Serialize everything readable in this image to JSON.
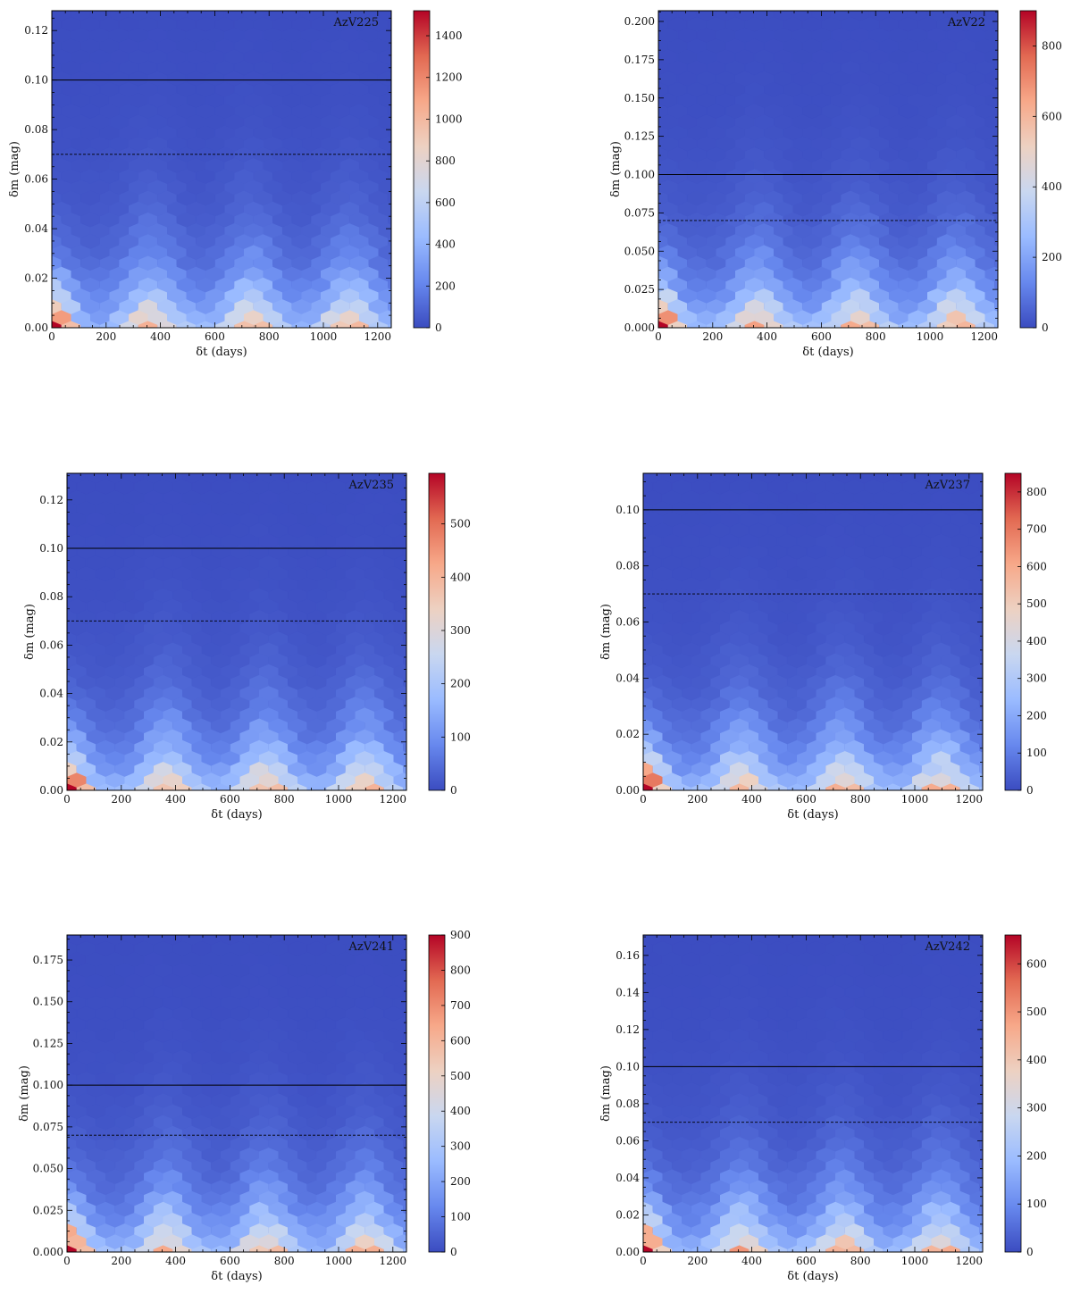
{
  "charts": {
    "common": {
      "xlabel": "δt (days)",
      "ylabel": "δm (mag)",
      "xticks": [
        0,
        200,
        400,
        600,
        800,
        1000,
        1200
      ],
      "xlim": [
        0,
        1250
      ],
      "colormap": "coolwarm",
      "colormap_stops": [
        "#3b4cc0",
        "#6788ee",
        "#9abbff",
        "#c9d7f0",
        "#edd1c2",
        "#f7a889",
        "#e26952",
        "#b40426"
      ],
      "solid_line_color": "#000000",
      "dashed_line_color": "#000000"
    },
    "panels": [
      {
        "name": "AzV225",
        "ylim": [
          0,
          0.128
        ],
        "yticks": [
          0.0,
          0.02,
          0.04,
          0.06,
          0.08,
          0.1,
          0.12
        ],
        "ydecimals": 2,
        "cbar_max": 1520,
        "cbar_ticks": [
          0,
          200,
          400,
          600,
          800,
          1000,
          1200,
          1400
        ],
        "solid": 0.1,
        "dashed": 0.07,
        "peak_scale": 1.0
      },
      {
        "name": "AzV22",
        "ylim": [
          0,
          0.207
        ],
        "yticks": [
          0.0,
          0.025,
          0.05,
          0.075,
          0.1,
          0.125,
          0.15,
          0.175,
          0.2
        ],
        "ydecimals": 3,
        "cbar_max": 900,
        "cbar_ticks": [
          0,
          200,
          400,
          600,
          800
        ],
        "solid": 0.1,
        "dashed": 0.07,
        "peak_scale": 1.0
      },
      {
        "name": "AzV235",
        "ylim": [
          0,
          0.131
        ],
        "yticks": [
          0.0,
          0.02,
          0.04,
          0.06,
          0.08,
          0.1,
          0.12
        ],
        "ydecimals": 2,
        "cbar_max": 595,
        "cbar_ticks": [
          0,
          100,
          200,
          300,
          400,
          500
        ],
        "solid": 0.1,
        "dashed": 0.07,
        "peak_scale": 1.0
      },
      {
        "name": "AzV237",
        "ylim": [
          0,
          0.113
        ],
        "yticks": [
          0.0,
          0.02,
          0.04,
          0.06,
          0.08,
          0.1
        ],
        "ydecimals": 2,
        "cbar_max": 850,
        "cbar_ticks": [
          0,
          100,
          200,
          300,
          400,
          500,
          600,
          700,
          800
        ],
        "solid": 0.1,
        "dashed": 0.07,
        "peak_scale": 1.0
      },
      {
        "name": "AzV241",
        "ylim": [
          0,
          0.19
        ],
        "yticks": [
          0.0,
          0.025,
          0.05,
          0.075,
          0.1,
          0.125,
          0.15,
          0.175
        ],
        "ydecimals": 3,
        "cbar_max": 900,
        "cbar_ticks": [
          0,
          100,
          200,
          300,
          400,
          500,
          600,
          700,
          800,
          900
        ],
        "solid": 0.1,
        "dashed": 0.07,
        "peak_scale": 1.0
      },
      {
        "name": "AzV242",
        "ylim": [
          0,
          0.171
        ],
        "yticks": [
          0.0,
          0.02,
          0.04,
          0.06,
          0.08,
          0.1,
          0.12,
          0.14,
          0.16
        ],
        "ydecimals": 2,
        "cbar_max": 660,
        "cbar_ticks": [
          0,
          100,
          200,
          300,
          400,
          500,
          600
        ],
        "solid": 0.1,
        "dashed": 0.07,
        "peak_scale": 1.0
      }
    ]
  },
  "chart_data": [
    {
      "type": "heatmap",
      "title": "AzV225",
      "xlabel": "δt (days)",
      "ylabel": "δm (mag)",
      "xlim": [
        0,
        1250
      ],
      "ylim": [
        0,
        0.128
      ],
      "colorbar_range": [
        0,
        1520
      ],
      "horizontal_lines": [
        {
          "y": 0.1,
          "style": "solid"
        },
        {
          "y": 0.07,
          "style": "dashed"
        }
      ]
    },
    {
      "type": "heatmap",
      "title": "AzV22",
      "xlabel": "δt (days)",
      "ylabel": "δm (mag)",
      "xlim": [
        0,
        1250
      ],
      "ylim": [
        0,
        0.207
      ],
      "colorbar_range": [
        0,
        900
      ],
      "horizontal_lines": [
        {
          "y": 0.1,
          "style": "solid"
        },
        {
          "y": 0.07,
          "style": "dashed"
        }
      ]
    },
    {
      "type": "heatmap",
      "title": "AzV235",
      "xlabel": "δt (days)",
      "ylabel": "δm (mag)",
      "xlim": [
        0,
        1250
      ],
      "ylim": [
        0,
        0.131
      ],
      "colorbar_range": [
        0,
        595
      ],
      "horizontal_lines": [
        {
          "y": 0.1,
          "style": "solid"
        },
        {
          "y": 0.07,
          "style": "dashed"
        }
      ]
    },
    {
      "type": "heatmap",
      "title": "AzV237",
      "xlabel": "δt (days)",
      "ylabel": "δm (mag)",
      "xlim": [
        0,
        1250
      ],
      "ylim": [
        0,
        0.113
      ],
      "colorbar_range": [
        0,
        850
      ],
      "horizontal_lines": [
        {
          "y": 0.1,
          "style": "solid"
        },
        {
          "y": 0.07,
          "style": "dashed"
        }
      ]
    },
    {
      "type": "heatmap",
      "title": "AzV241",
      "xlabel": "δt (days)",
      "ylabel": "δm (mag)",
      "xlim": [
        0,
        1250
      ],
      "ylim": [
        0,
        0.19
      ],
      "colorbar_range": [
        0,
        900
      ],
      "horizontal_lines": [
        {
          "y": 0.1,
          "style": "solid"
        },
        {
          "y": 0.07,
          "style": "dashed"
        }
      ]
    },
    {
      "type": "heatmap",
      "title": "AzV242",
      "xlabel": "δt (days)",
      "ylabel": "δm (mag)",
      "xlim": [
        0,
        1250
      ],
      "ylim": [
        0,
        0.171
      ],
      "colorbar_range": [
        0,
        660
      ],
      "horizontal_lines": [
        {
          "y": 0.1,
          "style": "solid"
        },
        {
          "y": 0.07,
          "style": "dashed"
        }
      ]
    }
  ]
}
